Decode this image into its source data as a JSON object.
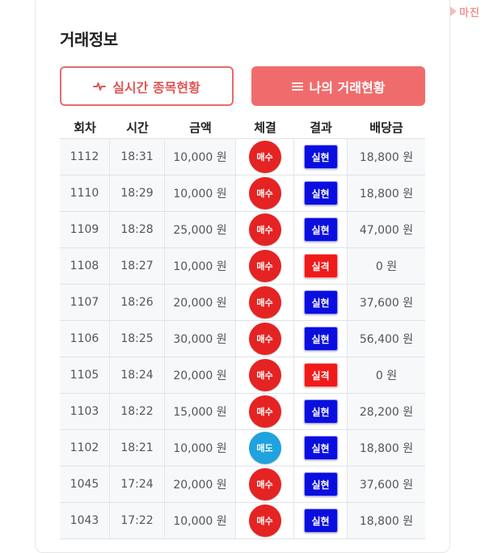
{
  "logo": {
    "text": "마진"
  },
  "page": {
    "title": "거래정보"
  },
  "buttons": {
    "live": {
      "label": "실시간 종목현황",
      "icon": "pulse-icon"
    },
    "mine": {
      "label": "나의 거래현황",
      "icon": "menu-icon"
    }
  },
  "colors": {
    "accent": "#f06c6c",
    "buy": "#e52323",
    "sell": "#1ea3df",
    "win": "#0a0fe0",
    "lose": "#f01a1a"
  },
  "table": {
    "headers": [
      "회차",
      "시간",
      "금액",
      "체결",
      "결과",
      "배당금"
    ],
    "rows": [
      {
        "round": "1112",
        "time": "18:31",
        "amount": "10,000 원",
        "trade": "매수",
        "trade_type": "buy",
        "result": "실현",
        "result_type": "win",
        "payout": "18,800 원"
      },
      {
        "round": "1110",
        "time": "18:29",
        "amount": "10,000 원",
        "trade": "매수",
        "trade_type": "buy",
        "result": "실현",
        "result_type": "win",
        "payout": "18,800 원"
      },
      {
        "round": "1109",
        "time": "18:28",
        "amount": "25,000 원",
        "trade": "매수",
        "trade_type": "buy",
        "result": "실현",
        "result_type": "win",
        "payout": "47,000 원"
      },
      {
        "round": "1108",
        "time": "18:27",
        "amount": "10,000 원",
        "trade": "매수",
        "trade_type": "buy",
        "result": "실격",
        "result_type": "lose",
        "payout": "0 원"
      },
      {
        "round": "1107",
        "time": "18:26",
        "amount": "20,000 원",
        "trade": "매수",
        "trade_type": "buy",
        "result": "실현",
        "result_type": "win",
        "payout": "37,600 원"
      },
      {
        "round": "1106",
        "time": "18:25",
        "amount": "30,000 원",
        "trade": "매수",
        "trade_type": "buy",
        "result": "실현",
        "result_type": "win",
        "payout": "56,400 원"
      },
      {
        "round": "1105",
        "time": "18:24",
        "amount": "20,000 원",
        "trade": "매수",
        "trade_type": "buy",
        "result": "실격",
        "result_type": "lose",
        "payout": "0 원"
      },
      {
        "round": "1103",
        "time": "18:22",
        "amount": "15,000 원",
        "trade": "매수",
        "trade_type": "buy",
        "result": "실현",
        "result_type": "win",
        "payout": "28,200 원"
      },
      {
        "round": "1102",
        "time": "18:21",
        "amount": "10,000 원",
        "trade": "매도",
        "trade_type": "sell",
        "result": "실현",
        "result_type": "win",
        "payout": "18,800 원"
      },
      {
        "round": "1045",
        "time": "17:24",
        "amount": "20,000 원",
        "trade": "매수",
        "trade_type": "buy",
        "result": "실현",
        "result_type": "win",
        "payout": "37,600 원"
      },
      {
        "round": "1043",
        "time": "17:22",
        "amount": "10,000 원",
        "trade": "매수",
        "trade_type": "buy",
        "result": "실현",
        "result_type": "win",
        "payout": "18,800 원"
      }
    ]
  }
}
